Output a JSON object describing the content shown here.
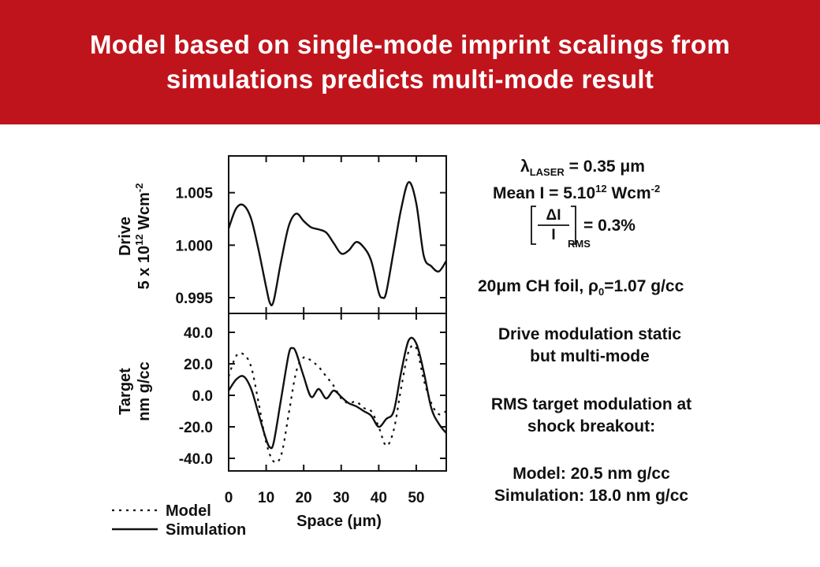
{
  "title": {
    "line1": "Model based on single-mode imprint scalings from",
    "line2": "simulations predicts multi-mode result"
  },
  "colors": {
    "header_bg": "#c0141c",
    "header_text": "#ffffff",
    "ink": "#111111"
  },
  "chart_data": [
    {
      "type": "line",
      "panel": "top",
      "ylabel_line1": "Drive",
      "ylabel_line2": "5 x 10",
      "ylabel_sup": "12",
      "ylabel_unit": "Wcm",
      "ylabel_unit_sup": "-2",
      "ylim": [
        0.9935,
        1.0085
      ],
      "yticks": [
        "1.005",
        "1.000",
        "0.995"
      ],
      "ytick_values": [
        1.005,
        1.0,
        0.995
      ],
      "xlim": [
        0,
        58
      ],
      "series": [
        {
          "style": "solid",
          "x": [
            0,
            2,
            4,
            6,
            8,
            10,
            11,
            12,
            14,
            16,
            18,
            20,
            22,
            24,
            26,
            28,
            30,
            32,
            34,
            36,
            38,
            40,
            41,
            42,
            44,
            46,
            48,
            50,
            52,
            54,
            56,
            58
          ],
          "y": [
            1.0016,
            1.0035,
            1.0038,
            1.0025,
            0.9995,
            0.996,
            0.9945,
            0.9947,
            0.9985,
            1.0018,
            1.003,
            1.0023,
            1.0017,
            1.0015,
            1.0012,
            1.0002,
            0.9992,
            0.9995,
            1.0003,
            0.9998,
            0.9985,
            0.9955,
            0.995,
            0.9955,
            0.9995,
            1.0035,
            1.006,
            1.004,
            0.999,
            0.998,
            0.9975,
            0.9985
          ]
        }
      ]
    },
    {
      "type": "line",
      "panel": "bottom",
      "ylabel_line1": "Target",
      "ylabel_line2": "nm g/cc",
      "ylim": [
        -48,
        52
      ],
      "yticks": [
        "40.0",
        "20.0",
        "0.0",
        "-20.0",
        "-40.0"
      ],
      "ytick_values": [
        40,
        20,
        0,
        -20,
        -40
      ],
      "xlim": [
        0,
        58
      ],
      "xticks": [
        0,
        10,
        20,
        30,
        40,
        50
      ],
      "xlabel": "Space (μm)",
      "series": [
        {
          "name": "Simulation",
          "style": "solid",
          "x": [
            0,
            2,
            4,
            6,
            8,
            10,
            11,
            12,
            14,
            16,
            17,
            18,
            20,
            22,
            24,
            26,
            28,
            30,
            32,
            34,
            36,
            38,
            40,
            42,
            44,
            46,
            48,
            50,
            52,
            54,
            56,
            58
          ],
          "y": [
            3,
            10,
            12,
            4,
            -12,
            -28,
            -33,
            -30,
            -2,
            26,
            30,
            27,
            12,
            -1,
            4,
            -2,
            3,
            -1,
            -5,
            -7,
            -10,
            -13,
            -20,
            -15,
            -10,
            15,
            35,
            33,
            15,
            -8,
            -18,
            -24
          ]
        },
        {
          "name": "Model",
          "style": "dotted",
          "x": [
            0,
            2,
            4,
            6,
            8,
            10,
            12,
            14,
            16,
            18,
            20,
            22,
            24,
            26,
            28,
            30,
            32,
            34,
            36,
            38,
            40,
            42,
            44,
            46,
            48,
            50,
            52,
            54,
            56,
            58
          ],
          "y": [
            12,
            25,
            26,
            18,
            -5,
            -30,
            -42,
            -38,
            -12,
            15,
            24,
            22,
            18,
            12,
            6,
            -2,
            -5,
            -4,
            -8,
            -10,
            -20,
            -32,
            -22,
            5,
            28,
            30,
            10,
            -5,
            -12,
            -10
          ]
        }
      ]
    }
  ],
  "legend": {
    "model_label": "Model",
    "simulation_label": "Simulation"
  },
  "annotations": {
    "lambda_symbol": "λ",
    "lambda_sub": "LASER",
    "lambda_value": "= 0.35 μm",
    "mean_label": "Mean I = 5.10",
    "mean_sup": "12",
    "mean_unit": "Wcm",
    "mean_unit_sup": "-2",
    "frac_top": "ΔI",
    "frac_bottom": "I",
    "frac_sub": "RMS",
    "frac_value": "= 0.3%",
    "foil_text": "20μm CH foil, ρ",
    "foil_sub": "0",
    "foil_value": "=1.07 g/cc",
    "drive_mod_line1": "Drive modulation static",
    "drive_mod_line2": "but multi-mode",
    "rms_line1": "RMS target modulation at",
    "rms_line2": "shock breakout:",
    "model_result": "Model: 20.5 nm g/cc",
    "simulation_result": "Simulation: 18.0 nm g/cc"
  }
}
